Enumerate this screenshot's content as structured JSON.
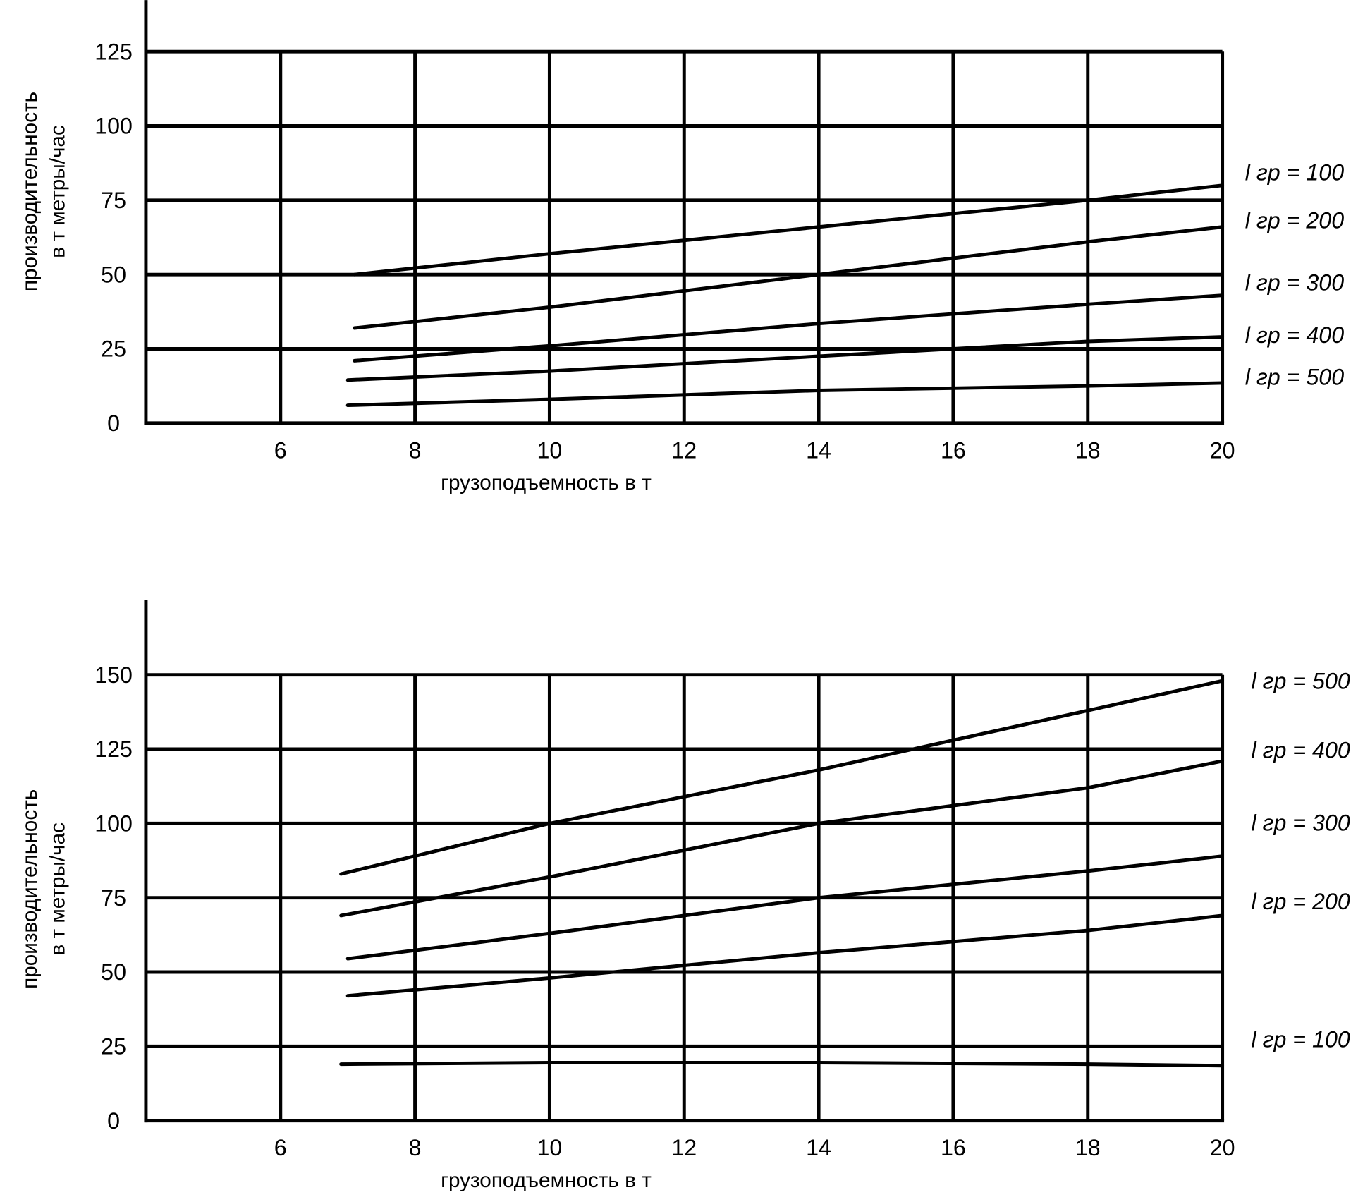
{
  "chart_data": [
    {
      "type": "line",
      "xlabel": "грузоподъемность в т",
      "ylabel": [
        "производительность",
        "в т метры/час"
      ],
      "x_ticks": [
        "6",
        "8",
        "10",
        "12",
        "14",
        "16",
        "18",
        "20"
      ],
      "y_ticks": [
        "0",
        "25",
        "50",
        "75",
        "100",
        "125"
      ],
      "xlim": [
        4,
        20
      ],
      "ylim": [
        0,
        125
      ],
      "grid": true,
      "series": [
        {
          "name": "l гр = 100",
          "x": [
            7.1,
            10,
            14,
            18,
            20
          ],
          "y": [
            50,
            57,
            66,
            75,
            80
          ]
        },
        {
          "name": "l гр = 200",
          "x": [
            7.1,
            10,
            14,
            18,
            20
          ],
          "y": [
            32,
            39,
            50,
            61,
            66
          ]
        },
        {
          "name": "l гр = 300",
          "x": [
            7.1,
            10,
            14,
            18,
            20
          ],
          "y": [
            21,
            26,
            33.5,
            40,
            43
          ]
        },
        {
          "name": "l гр = 400",
          "x": [
            7,
            10,
            14,
            18,
            20
          ],
          "y": [
            14.5,
            17.5,
            22.5,
            27.5,
            29
          ]
        },
        {
          "name": "l гр = 500",
          "x": [
            7,
            10,
            14,
            18,
            20
          ],
          "y": [
            6,
            8,
            11,
            12.5,
            13.5
          ]
        }
      ]
    },
    {
      "type": "line",
      "xlabel": "грузоподъемность в т",
      "ylabel": [
        "производительность",
        "в т метры/час"
      ],
      "x_ticks": [
        "6",
        "8",
        "10",
        "12",
        "14",
        "16",
        "18",
        "20"
      ],
      "y_ticks": [
        "0",
        "25",
        "50",
        "75",
        "100",
        "125",
        "150"
      ],
      "xlim": [
        4,
        20
      ],
      "ylim": [
        0,
        150
      ],
      "grid": true,
      "series": [
        {
          "name": "l гр = 500",
          "x": [
            6.9,
            10,
            14,
            18,
            20
          ],
          "y": [
            83,
            100,
            118,
            138,
            148
          ]
        },
        {
          "name": "l гр = 400",
          "x": [
            6.9,
            10,
            14,
            18,
            20
          ],
          "y": [
            69,
            82,
            100,
            112,
            121
          ]
        },
        {
          "name": "l гр = 300",
          "x": [
            7,
            10,
            14,
            18,
            20
          ],
          "y": [
            54.5,
            63,
            75,
            84,
            89
          ]
        },
        {
          "name": "l гр = 200",
          "x": [
            7,
            10,
            14,
            18,
            20
          ],
          "y": [
            42,
            48,
            56.5,
            64,
            69
          ]
        },
        {
          "name": "l гр = 100",
          "x": [
            6.9,
            10,
            14,
            18,
            20
          ],
          "y": [
            19,
            19.5,
            19.5,
            19,
            18.5
          ]
        }
      ]
    }
  ]
}
